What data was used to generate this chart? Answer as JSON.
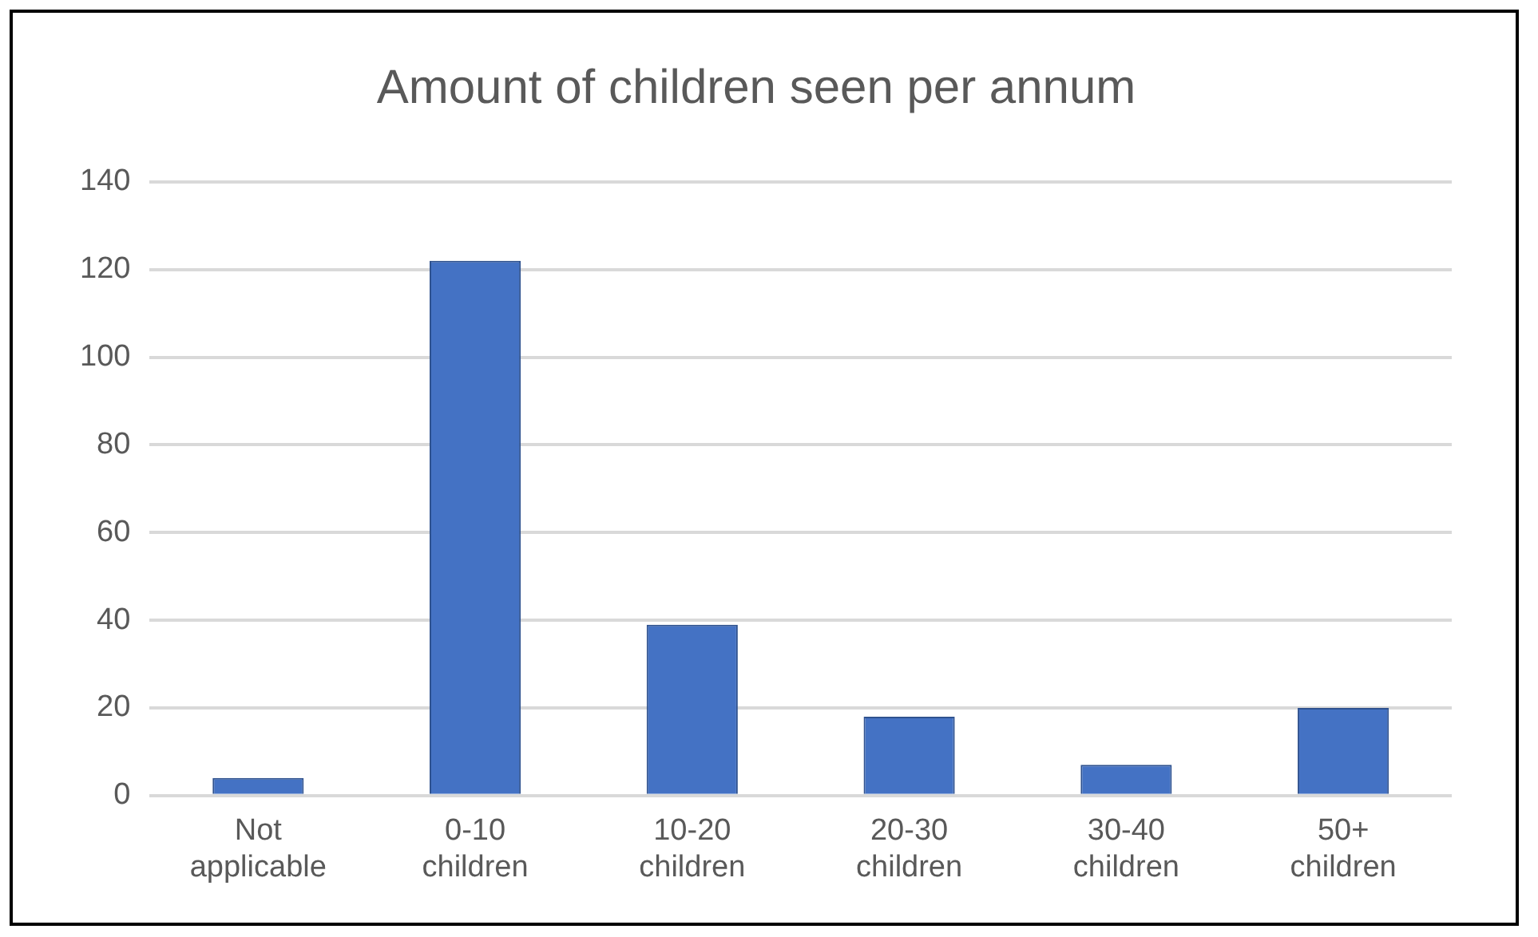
{
  "chart_data": {
    "type": "bar",
    "title": "Amount of children seen per annum",
    "categories": [
      "Not applicable",
      "0-10 children",
      "10-20 children",
      "20-30 children",
      "30-40 children",
      "50+ children"
    ],
    "values": [
      4,
      122,
      39,
      18,
      7,
      20
    ],
    "color": "#4472c4",
    "ylim": [
      0,
      140
    ],
    "yticks": [
      0,
      20,
      40,
      60,
      80,
      100,
      120,
      140
    ],
    "grid": "y",
    "legend": false
  }
}
